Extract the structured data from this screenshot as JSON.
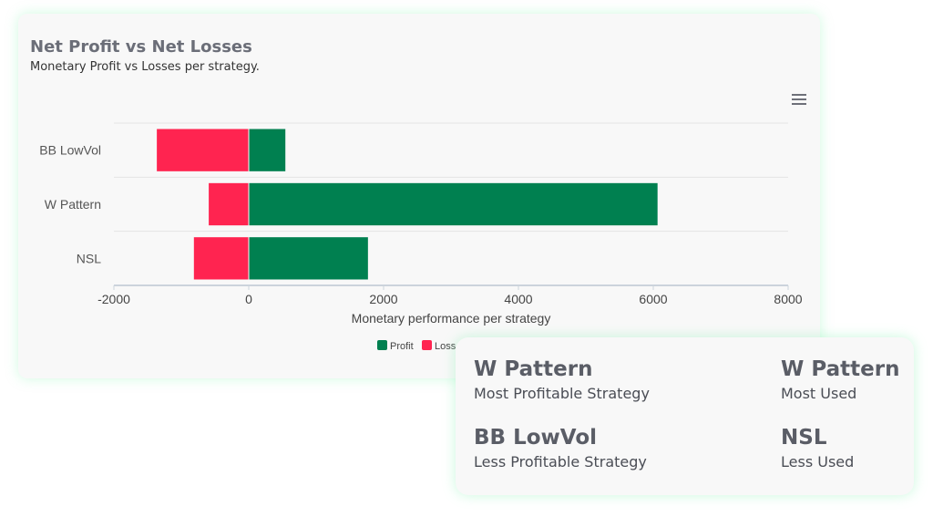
{
  "chart_data": {
    "type": "bar",
    "orientation": "horizontal",
    "stacked": true,
    "title": "Net Profit vs Net Losses",
    "subtitle": "Monetary Profit vs Losses per strategy.",
    "xlabel": "Monetary performance per strategy",
    "ylabel": "",
    "categories": [
      "BB LowVol",
      "W Pattern",
      "NSL"
    ],
    "series": [
      {
        "name": "Profit",
        "color": "#008050",
        "values": [
          550,
          6070,
          1775
        ]
      },
      {
        "name": "Loss",
        "color": "#ff2450",
        "values": [
          -1370,
          -600,
          -820
        ]
      }
    ],
    "xlim": [
      -2000,
      8000
    ],
    "xticks": [
      "-2000",
      "0",
      "2000",
      "4000",
      "6000",
      "8000"
    ],
    "grid": true,
    "legend_placement": "bottom"
  },
  "menu_icon": "hamburger-menu-icon",
  "stats": [
    {
      "value": "W Pattern",
      "label": "Most Profitable Strategy"
    },
    {
      "value": "W Pattern",
      "label": "Most Used"
    },
    {
      "value": "BB LowVol",
      "label": "Less Profitable Strategy"
    },
    {
      "value": "NSL",
      "label": "Less Used"
    }
  ]
}
